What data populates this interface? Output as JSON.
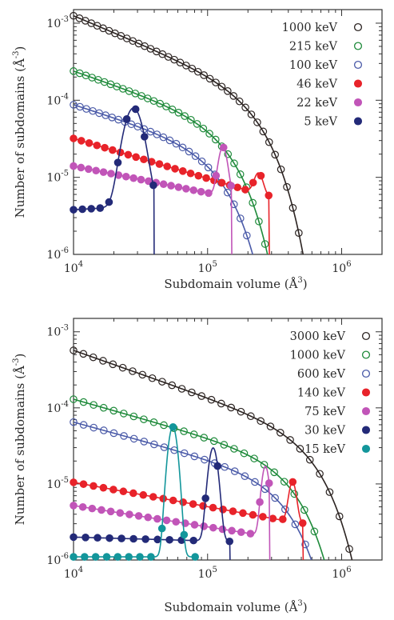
{
  "chart_data": [
    {
      "type": "scatter",
      "xlabel": "Subdomain volume (Å3)",
      "ylabel": "Number of subdomains (Å-3)",
      "xscale": "log",
      "yscale": "log",
      "xlim": [
        10000,
        2000000
      ],
      "ylim": [
        1e-06,
        0.0015
      ],
      "xticks": [
        {
          "value": 10000,
          "base": "10",
          "exp": "4"
        },
        {
          "value": 100000,
          "base": "10",
          "exp": "5"
        },
        {
          "value": 1000000,
          "base": "10",
          "exp": "6"
        }
      ],
      "yticks": [
        {
          "value": 1e-06,
          "base": "10",
          "exp": "-6"
        },
        {
          "value": 1e-05,
          "base": "10",
          "exp": "-5"
        },
        {
          "value": 0.0001,
          "base": "10",
          "exp": "-4"
        },
        {
          "value": 0.001,
          "base": "10",
          "exp": "-3"
        }
      ],
      "legend_position": "top-right",
      "series": [
        {
          "name": "1000 keV",
          "color": "#2b2321",
          "marker": "open",
          "fit": "power-cutoff",
          "y0": 0.00125,
          "slope": -0.73,
          "cutoff": 250000,
          "beta": 2,
          "x_start": 10000,
          "x_end": 530000,
          "n_points": 40
        },
        {
          "name": "215 keV",
          "color": "#1e8a3a",
          "marker": "open",
          "fit": "power-cutoff",
          "y0": 0.00024,
          "slope": -0.6,
          "cutoff": 150000,
          "beta": 2,
          "x_start": 10000,
          "x_end": 410000,
          "n_points": 36
        },
        {
          "name": "100 keV",
          "color": "#4a5aa8",
          "marker": "open",
          "fit": "power-cutoff",
          "y0": 8.8e-05,
          "slope": -0.55,
          "cutoff": 130000,
          "beta": 2,
          "x_start": 10000,
          "x_end": 380000,
          "n_points": 34
        },
        {
          "name": "46 keV",
          "color": "#e8232a",
          "marker": "filled",
          "fit": "power-peak",
          "y0": 3.2e-05,
          "slope": -0.52,
          "peak_x": 240000,
          "peak_y": 5.3e-06,
          "peak_width": 0.03,
          "x_end": 290000,
          "n_points": 26
        },
        {
          "name": "22 keV",
          "color": "#c155b8",
          "marker": "filled",
          "fit": "power-peak",
          "y0": 1.4e-05,
          "slope": -0.35,
          "peak_x": 130000,
          "peak_y": 1.9e-05,
          "peak_width": 0.03,
          "x_end": 152000,
          "n_points": 22
        },
        {
          "name": "5 keV",
          "color": "#232a78",
          "marker": "filled",
          "fit": "power-peak",
          "y0": 3.8e-06,
          "slope": 0.1,
          "peak_x": 28000,
          "peak_y": 7.5e-05,
          "peak_width": 0.06,
          "x_end": 40000,
          "n_points": 10
        }
      ]
    },
    {
      "type": "scatter",
      "xlabel": "Subdomain volume (Å3)",
      "ylabel": "Number of subdomains (Å-3)",
      "xscale": "log",
      "yscale": "log",
      "xlim": [
        10000,
        2000000
      ],
      "ylim": [
        1e-06,
        0.0015
      ],
      "xticks": [
        {
          "value": 10000,
          "base": "10",
          "exp": "4"
        },
        {
          "value": 100000,
          "base": "10",
          "exp": "5"
        },
        {
          "value": 1000000,
          "base": "10",
          "exp": "6"
        }
      ],
      "yticks": [
        {
          "value": 1e-06,
          "base": "10",
          "exp": "-6"
        },
        {
          "value": 1e-05,
          "base": "10",
          "exp": "-5"
        },
        {
          "value": 0.0001,
          "base": "10",
          "exp": "-4"
        },
        {
          "value": 0.001,
          "base": "10",
          "exp": "-3"
        }
      ],
      "legend_position": "top-right",
      "series": [
        {
          "name": "3000 keV",
          "color": "#2b2321",
          "marker": "open",
          "fit": "power-cutoff",
          "y0": 0.00057,
          "slope": -0.62,
          "cutoff": 650000,
          "beta": 2,
          "x_start": 10000,
          "x_end": 1350000,
          "n_points": 30
        },
        {
          "name": "1000 keV",
          "color": "#1e8a3a",
          "marker": "open",
          "fit": "power-cutoff",
          "y0": 0.00013,
          "slope": -0.5,
          "cutoff": 450000,
          "beta": 2,
          "x_start": 10000,
          "x_end": 1050000,
          "n_points": 28
        },
        {
          "name": "600 keV",
          "color": "#4a5aa8",
          "marker": "open",
          "fit": "power-cutoff",
          "y0": 6.5e-05,
          "slope": -0.48,
          "cutoff": 400000,
          "beta": 2,
          "x_start": 10000,
          "x_end": 900000,
          "n_points": 27
        },
        {
          "name": "140 keV",
          "color": "#e8232a",
          "marker": "filled",
          "fit": "power-peak",
          "y0": 1.05e-05,
          "slope": -0.32,
          "peak_x": 430000,
          "peak_y": 7.5e-06,
          "peak_width": 0.025,
          "x_end": 520000,
          "n_points": 24
        },
        {
          "name": "75 keV",
          "color": "#c155b8",
          "marker": "filled",
          "fit": "power-peak",
          "y0": 5.2e-06,
          "slope": -0.28,
          "peak_x": 270000,
          "peak_y": 1.5e-05,
          "peak_width": 0.025,
          "x_end": 292000,
          "n_points": 22
        },
        {
          "name": "30 keV",
          "color": "#232a78",
          "marker": "filled",
          "fit": "power-peak",
          "y0": 2e-06,
          "slope": -0.05,
          "peak_x": 110000,
          "peak_y": 2.8e-05,
          "peak_width": 0.03,
          "x_end": 148000,
          "n_points": 14
        },
        {
          "name": "15 keV",
          "color": "#13969b",
          "marker": "filled",
          "fit": "power-peak",
          "y0": 1.1e-06,
          "slope": 0.0,
          "peak_x": 55000,
          "peak_y": 5.5e-05,
          "peak_width": 0.03,
          "x_end": 82000,
          "n_points": 12
        }
      ]
    }
  ]
}
